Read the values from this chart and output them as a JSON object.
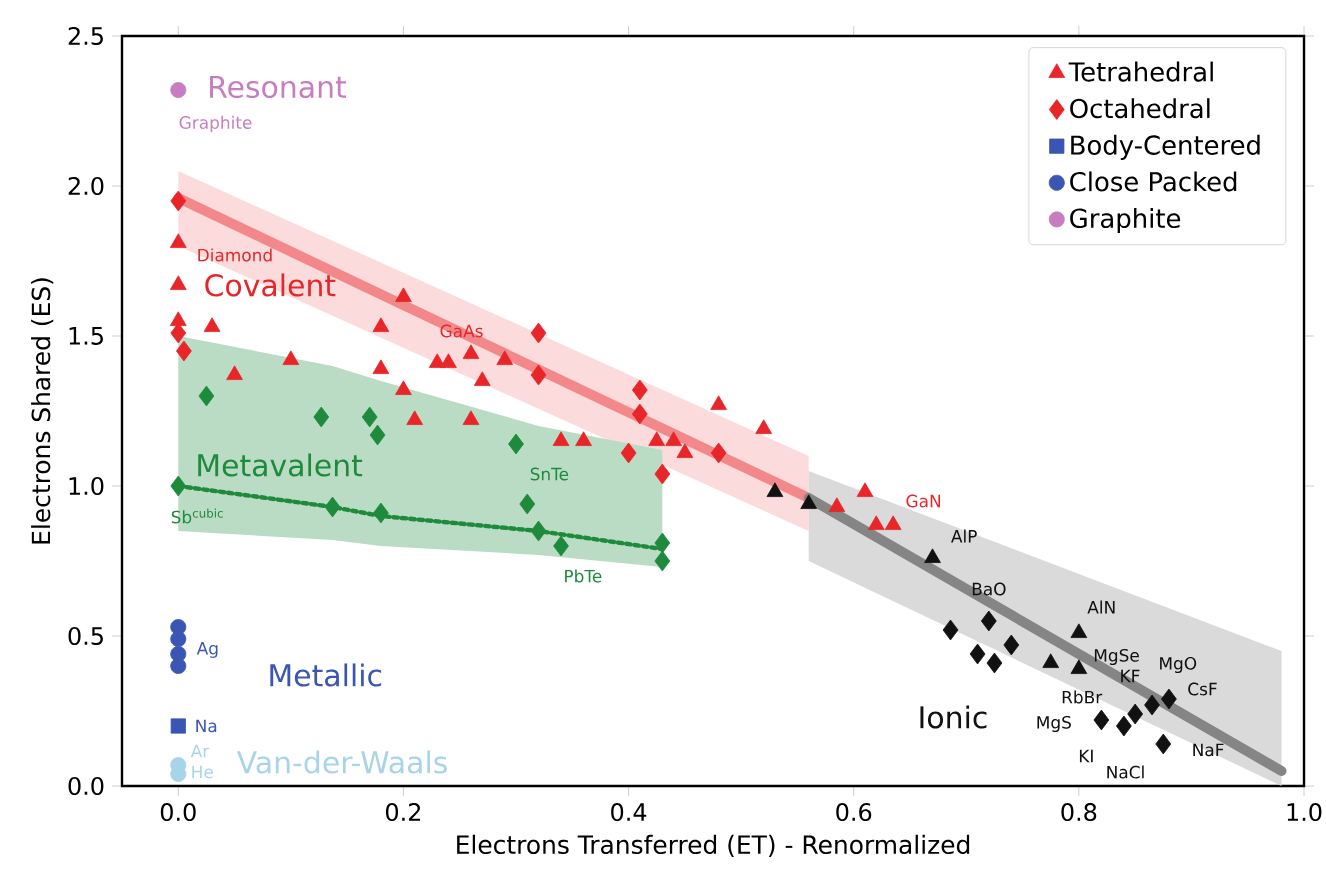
{
  "chart_data": {
    "type": "scatter",
    "xlabel": "Electrons Transferred (ET) - Renormalized",
    "ylabel": "Electrons Shared (ES)",
    "xlim": [
      -0.05,
      1.0
    ],
    "ylim": [
      0,
      2.5
    ],
    "xticks": [
      {
        "value": 0,
        "label": "0.0"
      },
      {
        "value": 0.2,
        "label": "0.2"
      },
      {
        "value": 0.4,
        "label": "0.4"
      },
      {
        "value": 0.6,
        "label": "0.6"
      },
      {
        "value": 0.8,
        "label": "0.8"
      },
      {
        "value": 1.0,
        "label": "1.0"
      }
    ],
    "yticks": [
      {
        "value": 0,
        "label": "0.0"
      },
      {
        "value": 0.5,
        "label": "0.5"
      },
      {
        "value": 1.0,
        "label": "1.0"
      },
      {
        "value": 1.5,
        "label": "1.5"
      },
      {
        "value": 2.0,
        "label": "2.0"
      },
      {
        "value": 2.5,
        "label": "2.5"
      }
    ],
    "legend": "top right",
    "series": [
      {
        "type": "line",
        "color": "#f2888a",
        "x": [
          0,
          0.56
        ],
        "values": [
          1.96,
          0.96
        ],
        "lower": [
          1.8,
          0.85
        ],
        "upper": [
          2.05,
          1.1
        ]
      },
      {
        "type": "line",
        "color": "#858585",
        "x": [
          0.56,
          0.98
        ],
        "values": [
          0.96,
          0.05
        ],
        "lower": [
          0.75,
          0.0
        ],
        "upper": [
          1.05,
          0.45
        ]
      },
      {
        "type": "line",
        "color": "#1e8a3c",
        "line_style": "dotted",
        "x": [
          0,
          0.137,
          0.18,
          0.32,
          0.43
        ],
        "values": [
          1.0,
          0.93,
          0.9,
          0.85,
          0.79
        ],
        "lower": [
          0.85,
          0.82,
          0.8,
          0.77,
          0.73
        ],
        "upper": [
          1.5,
          1.4,
          1.35,
          1.2,
          1.12
        ]
      },
      {
        "name": "Tetrahedral",
        "marker": "triangle",
        "x": [
          0,
          0,
          0,
          0.03,
          0.05,
          0.1,
          0.2,
          0.18,
          0.18,
          0.2,
          0.21,
          0.23,
          0.24,
          0.26,
          0.27,
          0.29,
          0.26,
          0.34,
          0.36,
          0.425,
          0.44,
          0.45,
          0.48,
          0.52,
          0.585,
          0.61,
          0.62,
          0.635,
          0.53,
          0.56,
          0.67,
          0.8,
          0.775,
          0.8
        ],
        "values": [
          1.81,
          1.67,
          1.55,
          1.53,
          1.37,
          1.42,
          1.63,
          1.53,
          1.39,
          1.32,
          1.22,
          1.41,
          1.41,
          1.44,
          1.35,
          1.42,
          1.22,
          1.15,
          1.15,
          1.15,
          1.15,
          1.11,
          1.27,
          1.19,
          0.93,
          0.98,
          0.87,
          0.87,
          0.98,
          0.94,
          0.76,
          0.51,
          0.41,
          0.39
        ],
        "colors": [
          "#e8262a",
          "#e8262a",
          "#e8262a",
          "#e8262a",
          "#e8262a",
          "#e8262a",
          "#e8262a",
          "#e8262a",
          "#e8262a",
          "#e8262a",
          "#e8262a",
          "#e8262a",
          "#e8262a",
          "#e8262a",
          "#e8262a",
          "#e8262a",
          "#e8262a",
          "#e8262a",
          "#e8262a",
          "#e8262a",
          "#e8262a",
          "#e8262a",
          "#e8262a",
          "#e8262a",
          "#e8262a",
          "#e8262a",
          "#e8262a",
          "#e8262a",
          "#111111",
          "#111111",
          "#111111",
          "#111111",
          "#111111",
          "#111111"
        ]
      },
      {
        "name": "Octahedral",
        "marker": "diamond",
        "x": [
          0,
          0,
          0.005,
          0.32,
          0.32,
          0.41,
          0.41,
          0.4,
          0.43,
          0.48,
          0.025,
          0,
          0.127,
          0.17,
          0.177,
          0.3,
          0.137,
          0.18,
          0.31,
          0.32,
          0.34,
          0.43,
          0.43,
          0.686,
          0.72,
          0.71,
          0.74,
          0.725,
          0.82,
          0.85,
          0.865,
          0.88,
          0.875,
          0.84
        ],
        "values": [
          1.95,
          1.51,
          1.45,
          1.51,
          1.37,
          1.32,
          1.24,
          1.11,
          1.04,
          1.11,
          1.3,
          1.0,
          1.23,
          1.23,
          1.17,
          1.14,
          0.93,
          0.91,
          0.94,
          0.85,
          0.8,
          0.81,
          0.75,
          0.52,
          0.55,
          0.44,
          0.47,
          0.41,
          0.22,
          0.24,
          0.27,
          0.29,
          0.14,
          0.2
        ],
        "colors": [
          "#e8262a",
          "#e8262a",
          "#e8262a",
          "#e8262a",
          "#e8262a",
          "#e8262a",
          "#e8262a",
          "#e8262a",
          "#e8262a",
          "#e8262a",
          "#1e8a3c",
          "#1e8a3c",
          "#1e8a3c",
          "#1e8a3c",
          "#1e8a3c",
          "#1e8a3c",
          "#1e8a3c",
          "#1e8a3c",
          "#1e8a3c",
          "#1e8a3c",
          "#1e8a3c",
          "#1e8a3c",
          "#1e8a3c",
          "#111111",
          "#111111",
          "#111111",
          "#111111",
          "#111111",
          "#111111",
          "#111111",
          "#111111",
          "#111111",
          "#111111",
          "#111111"
        ]
      },
      {
        "name": "Body-Centered",
        "marker": "square",
        "x": [
          0
        ],
        "values": [
          0.2
        ],
        "colors": [
          "#3a55b4"
        ]
      },
      {
        "name": "Close Packed",
        "marker": "circle",
        "x": [
          0,
          0,
          0,
          0,
          0,
          0
        ],
        "values": [
          0.53,
          0.49,
          0.44,
          0.4,
          0.07,
          0.04
        ],
        "colors": [
          "#3a55b4",
          "#3a55b4",
          "#3a55b4",
          "#3a55b4",
          "#a8d4ea",
          "#a8d4ea"
        ]
      },
      {
        "name": "Graphite",
        "marker": "circle",
        "x": [
          0
        ],
        "values": [
          2.32
        ],
        "colors": [
          "#c77dc0"
        ]
      }
    ],
    "annotations": [
      "Resonant",
      "Covalent",
      "Metavalent",
      "Metallic",
      "Van-der-Waals",
      "Ionic",
      {
        "text": "Graphite",
        "x": 0,
        "y": 2.32
      },
      {
        "text": "Diamond",
        "x": 0,
        "y": 1.81
      },
      {
        "text": "GaAs",
        "x": 0.23,
        "y": 1.41
      },
      {
        "text": "Sb$^{cubic}$",
        "x": 0,
        "y": 1.0
      },
      {
        "text": "SnTe",
        "x": 0.31,
        "y": 0.94
      },
      {
        "text": "PbTe",
        "x": 0.34,
        "y": 0.8
      },
      {
        "text": "GaN",
        "x": 0.635,
        "y": 0.87
      },
      {
        "text": "AlP",
        "x": 0.67,
        "y": 0.76
      },
      {
        "text": "BaO",
        "x": 0.72,
        "y": 0.55
      },
      {
        "text": "AlN",
        "x": 0.8,
        "y": 0.51
      },
      {
        "text": "MgSe",
        "x": 0.8,
        "y": 0.39
      },
      {
        "text": "MgO",
        "x": 0.865,
        "y": 0.27
      },
      {
        "text": "KF",
        "x": 0.85,
        "y": 0.24
      },
      {
        "text": "RbBr",
        "x": 0.775,
        "y": 0.41
      },
      {
        "text": "CsF",
        "x": 0.88,
        "y": 0.29
      },
      {
        "text": "MgS",
        "x": 0.82,
        "y": 0.22
      },
      {
        "text": "KI",
        "x": 0.84,
        "y": 0.2
      },
      {
        "text": "NaCl",
        "x": 0.875,
        "y": 0.14
      },
      {
        "text": "NaF",
        "x": 0.875,
        "y": 0.14
      },
      {
        "text": "Ag",
        "x": 0,
        "y": 0.44
      },
      {
        "text": "Na",
        "x": 0,
        "y": 0.2
      },
      {
        "text": "Ar",
        "x": 0,
        "y": 0.07
      },
      {
        "text": "He",
        "x": 0,
        "y": 0.04
      }
    ]
  }
}
